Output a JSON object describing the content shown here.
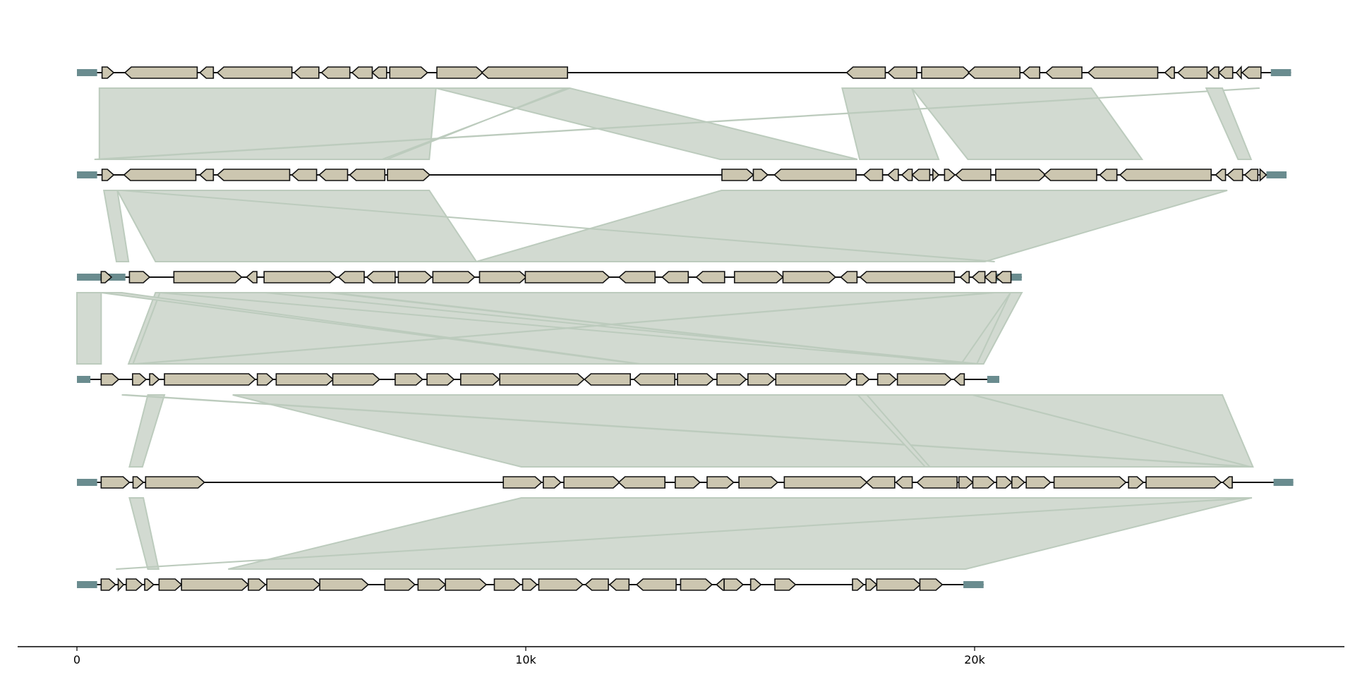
{
  "axis": {
    "min": 0,
    "max": 30000,
    "ticks": [
      {
        "value": 0,
        "label": "0"
      },
      {
        "value": 10000,
        "label": "10k"
      },
      {
        "value": 20000,
        "label": "20k"
      }
    ]
  },
  "colors": {
    "gene_fill": "#ccc6b0",
    "gene_stroke": "#111111",
    "flank": "#6a8c8f",
    "link_fill": "#d2dad1",
    "link_stroke": "#bccbbd",
    "backbone": "#111111"
  },
  "tracks": [
    {
      "start": 0,
      "end": 27050,
      "flanks": [
        [
          0,
          450
        ],
        [
          26600,
          27050
        ]
      ],
      "genes": [
        [
          560,
          820,
          1
        ],
        [
          1070,
          2680,
          -1
        ],
        [
          2740,
          3040,
          -1
        ],
        [
          3130,
          4790,
          -1
        ],
        [
          4840,
          5390,
          -1
        ],
        [
          5450,
          6080,
          -1
        ],
        [
          6130,
          6580,
          -1
        ],
        [
          6580,
          6900,
          -1
        ],
        [
          6970,
          7810,
          1
        ],
        [
          8020,
          9040,
          1
        ],
        [
          9020,
          10930,
          -1
        ],
        [
          17150,
          18010,
          -1
        ],
        [
          18070,
          18710,
          -1
        ],
        [
          18820,
          19890,
          1
        ],
        [
          19860,
          21010,
          -1
        ],
        [
          21080,
          21450,
          -1
        ],
        [
          21590,
          22390,
          -1
        ],
        [
          22530,
          24080,
          -1
        ],
        [
          24240,
          24450,
          -1
        ],
        [
          24530,
          25180,
          -1
        ],
        [
          25200,
          25440,
          -1
        ],
        [
          25440,
          25750,
          -1
        ],
        [
          25830,
          25940,
          -1
        ],
        [
          25960,
          26380,
          -1
        ]
      ]
    },
    {
      "start": 0,
      "end": 26950,
      "flanks": [
        [
          0,
          450
        ],
        [
          26500,
          26950
        ]
      ],
      "genes": [
        [
          560,
          820,
          1
        ],
        [
          1050,
          2650,
          -1
        ],
        [
          2740,
          3040,
          -1
        ],
        [
          3130,
          4740,
          -1
        ],
        [
          4790,
          5340,
          -1
        ],
        [
          5400,
          6030,
          -1
        ],
        [
          6080,
          6860,
          -1
        ],
        [
          6920,
          7860,
          1
        ],
        [
          14370,
          15070,
          1
        ],
        [
          15070,
          15390,
          1
        ],
        [
          15540,
          17360,
          -1
        ],
        [
          17530,
          17950,
          -1
        ],
        [
          18070,
          18300,
          -1
        ],
        [
          18380,
          18610,
          -1
        ],
        [
          18610,
          19000,
          -1
        ],
        [
          19070,
          19200,
          1
        ],
        [
          19330,
          19560,
          1
        ],
        [
          19580,
          20360,
          -1
        ],
        [
          20470,
          21580,
          1
        ],
        [
          21550,
          22720,
          -1
        ],
        [
          22790,
          23170,
          -1
        ],
        [
          23240,
          25270,
          -1
        ],
        [
          25370,
          25590,
          -1
        ],
        [
          25630,
          25970,
          -1
        ],
        [
          26020,
          26310,
          -1
        ],
        [
          26360,
          26500,
          1
        ]
      ]
    },
    {
      "start": 0,
      "end": 21050,
      "flanks": [
        [
          0,
          1080
        ],
        [
          20480,
          21050
        ]
      ],
      "genes": [
        [
          540,
          770,
          1
        ],
        [
          1170,
          1620,
          1
        ],
        [
          2160,
          3670,
          1
        ],
        [
          3780,
          4010,
          -1
        ],
        [
          4170,
          5780,
          1
        ],
        [
          5830,
          6400,
          -1
        ],
        [
          6460,
          7090,
          -1
        ],
        [
          7160,
          7900,
          1
        ],
        [
          7930,
          8860,
          1
        ],
        [
          8970,
          10010,
          1
        ],
        [
          9990,
          11860,
          1
        ],
        [
          12080,
          12880,
          -1
        ],
        [
          13040,
          13620,
          -1
        ],
        [
          13800,
          14430,
          -1
        ],
        [
          14650,
          15730,
          1
        ],
        [
          15730,
          16900,
          1
        ],
        [
          17020,
          17380,
          -1
        ],
        [
          17450,
          19550,
          -1
        ],
        [
          19680,
          19880,
          -1
        ],
        [
          19950,
          20230,
          -1
        ],
        [
          20230,
          20480,
          -1
        ],
        [
          20480,
          20810,
          -1
        ]
      ]
    },
    {
      "start": 0,
      "end": 20550,
      "flanks": [
        [
          0,
          300
        ],
        [
          20280,
          20550
        ]
      ],
      "genes": [
        [
          540,
          930,
          1
        ],
        [
          1240,
          1540,
          1
        ],
        [
          1620,
          1830,
          1
        ],
        [
          1950,
          3970,
          1
        ],
        [
          4020,
          4370,
          1
        ],
        [
          4440,
          5710,
          1
        ],
        [
          5700,
          6740,
          1
        ],
        [
          7090,
          7700,
          1
        ],
        [
          7800,
          8400,
          1
        ],
        [
          8550,
          9410,
          1
        ],
        [
          9420,
          11300,
          1
        ],
        [
          11310,
          12330,
          -1
        ],
        [
          12410,
          13320,
          -1
        ],
        [
          13380,
          14180,
          1
        ],
        [
          14260,
          14910,
          1
        ],
        [
          14950,
          15540,
          1
        ],
        [
          15570,
          17270,
          1
        ],
        [
          17370,
          17650,
          1
        ],
        [
          17840,
          18250,
          1
        ],
        [
          18280,
          19480,
          1
        ],
        [
          19540,
          19770,
          -1
        ]
      ]
    },
    {
      "start": 0,
      "end": 27100,
      "flanks": [
        [
          0,
          450
        ],
        [
          26660,
          27100
        ]
      ],
      "genes": [
        [
          540,
          1170,
          1
        ],
        [
          1250,
          1480,
          1
        ],
        [
          1530,
          2840,
          1
        ],
        [
          9500,
          10350,
          1
        ],
        [
          10390,
          10780,
          1
        ],
        [
          10850,
          12090,
          1
        ],
        [
          12070,
          13100,
          -1
        ],
        [
          13330,
          13880,
          1
        ],
        [
          14040,
          14630,
          1
        ],
        [
          14750,
          15610,
          1
        ],
        [
          15760,
          17600,
          1
        ],
        [
          17590,
          18220,
          -1
        ],
        [
          18250,
          18610,
          -1
        ],
        [
          18720,
          19610,
          -1
        ],
        [
          19650,
          19960,
          1
        ],
        [
          19960,
          20440,
          1
        ],
        [
          20490,
          20830,
          1
        ],
        [
          20830,
          21110,
          1
        ],
        [
          21150,
          21690,
          1
        ],
        [
          21770,
          23370,
          1
        ],
        [
          23430,
          23760,
          1
        ],
        [
          23820,
          25490,
          1
        ],
        [
          25530,
          25740,
          -1
        ]
      ]
    },
    {
      "start": 0,
      "end": 20200,
      "flanks": [
        [
          0,
          450
        ],
        [
          19750,
          20200
        ]
      ],
      "genes": [
        [
          540,
          860,
          1
        ],
        [
          920,
          1040,
          1
        ],
        [
          1100,
          1460,
          1
        ],
        [
          1510,
          1710,
          1
        ],
        [
          1830,
          2330,
          1
        ],
        [
          2330,
          3820,
          1
        ],
        [
          3820,
          4200,
          1
        ],
        [
          4230,
          5410,
          1
        ],
        [
          5410,
          6490,
          1
        ],
        [
          6860,
          7530,
          1
        ],
        [
          7600,
          8210,
          1
        ],
        [
          8210,
          9120,
          1
        ],
        [
          9300,
          9880,
          1
        ],
        [
          9930,
          10250,
          1
        ],
        [
          10290,
          11270,
          1
        ],
        [
          11330,
          11840,
          -1
        ],
        [
          11870,
          12300,
          -1
        ],
        [
          12470,
          13350,
          -1
        ],
        [
          13450,
          14150,
          1
        ],
        [
          14250,
          14420,
          -1
        ],
        [
          14420,
          14840,
          1
        ],
        [
          15010,
          15240,
          1
        ],
        [
          15550,
          16010,
          1
        ],
        [
          17280,
          17530,
          1
        ],
        [
          17580,
          17820,
          1
        ],
        [
          17820,
          18790,
          1
        ],
        [
          18780,
          19280,
          1
        ]
      ]
    }
  ],
  "links": [
    {
      "pair": 0,
      "a": [
        500,
        8000
      ],
      "b": [
        500,
        7850
      ]
    },
    {
      "pair": 0,
      "a": [
        8000,
        10980
      ],
      "b": [
        14330,
        17390
      ]
    },
    {
      "pair": 0,
      "a": [
        10980,
        10900
      ],
      "b": [
        6800,
        6900
      ]
    },
    {
      "pair": 0,
      "a": [
        17050,
        18600
      ],
      "b": [
        17440,
        19200
      ]
    },
    {
      "pair": 0,
      "a": [
        18600,
        22600
      ],
      "b": [
        19850,
        23730
      ]
    },
    {
      "pair": 0,
      "a": [
        26300,
        26350
      ],
      "b": [
        390,
        500
      ]
    },
    {
      "pair": 0,
      "a": [
        25160,
        25520
      ],
      "b": [
        25870,
        26160
      ]
    },
    {
      "pair": 1,
      "a": [
        600,
        900
      ],
      "b": [
        880,
        1150
      ]
    },
    {
      "pair": 1,
      "a": [
        900,
        7850
      ],
      "b": [
        1750,
        8900
      ]
    },
    {
      "pair": 1,
      "a": [
        14360,
        25630
      ],
      "b": [
        8900,
        20230
      ]
    },
    {
      "pair": 1,
      "a": [
        1000,
        1000
      ],
      "b": [
        20420,
        20450
      ]
    },
    {
      "pair": 2,
      "a": [
        0,
        540
      ],
      "b": [
        0,
        540
      ]
    },
    {
      "pair": 2,
      "a": [
        1750,
        1850
      ],
      "b": [
        1150,
        1250
      ]
    },
    {
      "pair": 2,
      "a": [
        1850,
        20900
      ],
      "b": [
        1250,
        19700
      ]
    },
    {
      "pair": 2,
      "a": [
        20800,
        21050
      ],
      "b": [
        19700,
        20050
      ]
    },
    {
      "pair": 2,
      "a": [
        20800,
        21050
      ],
      "b": [
        20050,
        20200
      ]
    },
    {
      "pair": 2,
      "a": [
        1850,
        4200
      ],
      "b": [
        20050,
        20100
      ]
    },
    {
      "pair": 2,
      "a": [
        540,
        1000
      ],
      "b": [
        12500,
        12550
      ]
    },
    {
      "pair": 2,
      "a": [
        20400,
        20450
      ],
      "b": [
        1300,
        1350
      ]
    },
    {
      "pair": 2,
      "a": [
        5600,
        5700
      ],
      "b": [
        19650,
        19700
      ]
    },
    {
      "pair": 3,
      "a": [
        1580,
        1950
      ],
      "b": [
        1170,
        1460
      ]
    },
    {
      "pair": 3,
      "a": [
        3470,
        19960
      ],
      "b": [
        9900,
        26150
      ]
    },
    {
      "pair": 3,
      "a": [
        19960,
        25520
      ],
      "b": [
        26150,
        26200
      ]
    },
    {
      "pair": 3,
      "a": [
        1000,
        1100
      ],
      "b": [
        26100,
        26200
      ]
    },
    {
      "pair": 3,
      "a": [
        17400,
        17600
      ],
      "b": [
        18900,
        19000
      ]
    },
    {
      "pair": 4,
      "a": [
        1170,
        1480
      ],
      "b": [
        1580,
        1820
      ]
    },
    {
      "pair": 4,
      "a": [
        9900,
        26160
      ],
      "b": [
        3370,
        19800
      ]
    },
    {
      "pair": 4,
      "a": [
        26160,
        26180
      ],
      "b": [
        870,
        900
      ]
    }
  ]
}
